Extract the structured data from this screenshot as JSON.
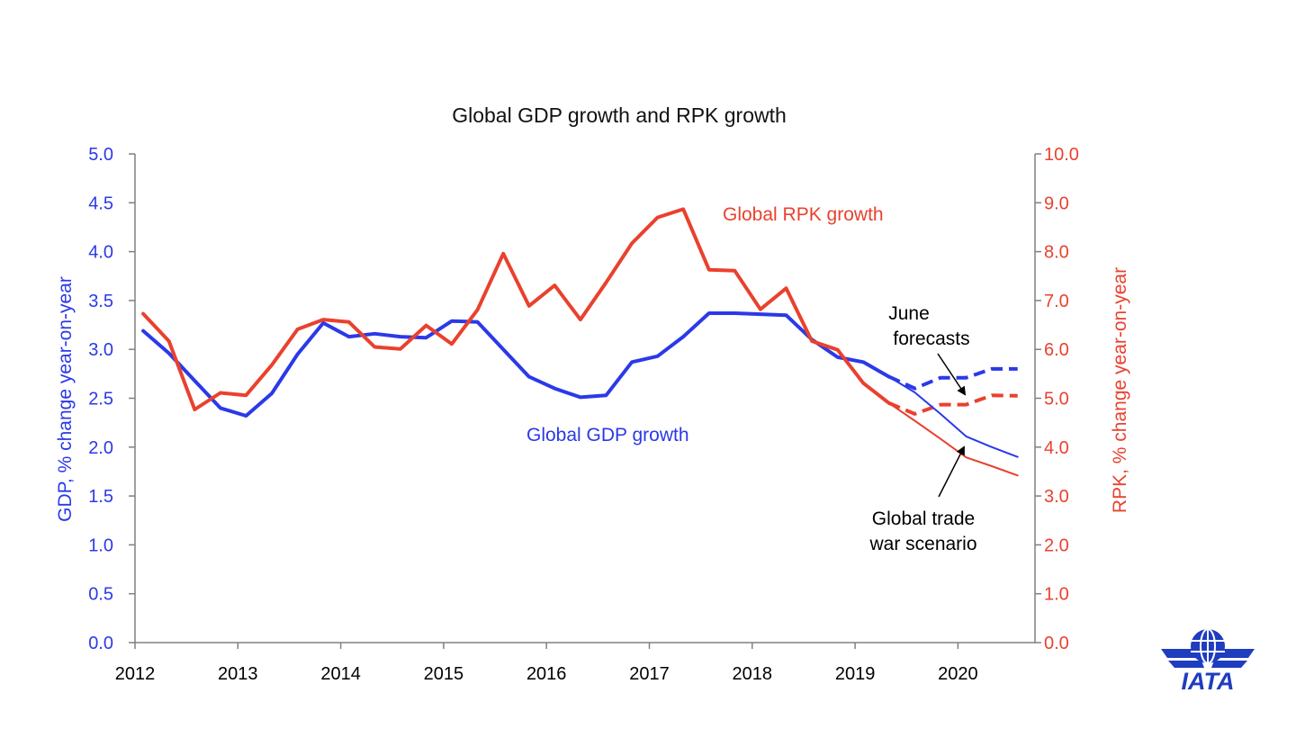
{
  "chart_data": {
    "type": "line",
    "title": "Global GDP growth and RPK growth",
    "x_ticks": [
      "2012",
      "2013",
      "2014",
      "2015",
      "2016",
      "2017",
      "2018",
      "2019",
      "2020"
    ],
    "y_left": {
      "label": "GDP, % change year-on-year",
      "range": [
        0,
        5
      ],
      "ticks": [
        "0.0",
        "0.5",
        "1.0",
        "1.5",
        "2.0",
        "2.5",
        "3.0",
        "3.5",
        "4.0",
        "4.5",
        "5.0"
      ],
      "color": "#2b39e8"
    },
    "y_right": {
      "label": "RPK, % change year-on-year",
      "range": [
        0,
        10
      ],
      "ticks": [
        "0.0",
        "1.0",
        "2.0",
        "3.0",
        "4.0",
        "5.0",
        "6.0",
        "7.0",
        "8.0",
        "9.0",
        "10.0"
      ],
      "color": "#e9412e"
    },
    "grid": false,
    "series": [
      {
        "name": "Global GDP growth",
        "axis": "left",
        "color": "#2b39e8",
        "style": "solid",
        "x": [
          2012.08,
          2012.33,
          2012.58,
          2012.83,
          2013.08,
          2013.33,
          2013.58,
          2013.83,
          2014.08,
          2014.33,
          2014.58,
          2014.83,
          2015.08,
          2015.33,
          2015.58,
          2015.83,
          2016.08,
          2016.33,
          2016.58,
          2016.83,
          2017.08,
          2017.33,
          2017.58,
          2017.83,
          2018.08,
          2018.33,
          2018.58,
          2018.83,
          2019.08,
          2019.33
        ],
        "y": [
          3.19,
          2.96,
          2.68,
          2.4,
          2.32,
          2.55,
          2.95,
          3.27,
          3.13,
          3.16,
          3.13,
          3.12,
          3.29,
          3.28,
          3.0,
          2.72,
          2.6,
          2.51,
          2.53,
          2.87,
          2.93,
          3.13,
          3.37,
          3.37,
          3.36,
          3.35,
          3.1,
          2.92,
          2.87,
          2.72
        ]
      },
      {
        "name": "Global RPK growth",
        "axis": "right",
        "color": "#e9412e",
        "style": "solid",
        "x": [
          2012.08,
          2012.33,
          2012.58,
          2012.83,
          2013.08,
          2013.33,
          2013.58,
          2013.83,
          2014.08,
          2014.33,
          2014.58,
          2014.83,
          2015.08,
          2015.33,
          2015.58,
          2015.83,
          2016.08,
          2016.33,
          2016.58,
          2016.83,
          2017.08,
          2017.33,
          2017.58,
          2017.83,
          2018.08,
          2018.33,
          2018.58,
          2018.83,
          2019.08,
          2019.33
        ],
        "y": [
          6.73,
          6.17,
          4.77,
          5.11,
          5.06,
          5.68,
          6.41,
          6.61,
          6.56,
          6.05,
          6.01,
          6.49,
          6.11,
          6.81,
          7.96,
          6.89,
          7.31,
          6.61,
          7.37,
          8.17,
          8.7,
          8.87,
          7.63,
          7.61,
          6.82,
          7.25,
          6.17,
          5.99,
          5.31,
          4.9
        ]
      },
      {
        "name": "GDP June forecasts",
        "axis": "left",
        "color": "#2b39e8",
        "style": "dashed",
        "x": [
          2019.33,
          2019.58,
          2019.83,
          2020.08,
          2020.33,
          2020.58
        ],
        "y": [
          2.72,
          2.6,
          2.71,
          2.71,
          2.8,
          2.8
        ]
      },
      {
        "name": "RPK June forecasts",
        "axis": "right",
        "color": "#e9412e",
        "style": "dashed",
        "x": [
          2019.33,
          2019.58,
          2019.83,
          2020.08,
          2020.33,
          2020.58
        ],
        "y": [
          4.9,
          4.68,
          4.87,
          4.87,
          5.06,
          5.05
        ]
      },
      {
        "name": "GDP Global trade war scenario",
        "axis": "left",
        "color": "#2b39e8",
        "style": "thin",
        "x": [
          2019.33,
          2019.58,
          2019.83,
          2020.08,
          2020.33,
          2020.58
        ],
        "y": [
          2.72,
          2.56,
          2.34,
          2.11,
          2.0,
          1.9
        ]
      },
      {
        "name": "RPK Global trade war scenario",
        "axis": "right",
        "color": "#e9412e",
        "style": "thin",
        "x": [
          2019.33,
          2019.58,
          2019.83,
          2020.08,
          2020.33,
          2020.58
        ],
        "y": [
          4.9,
          4.54,
          4.17,
          3.79,
          3.61,
          3.42
        ]
      }
    ],
    "annotations": {
      "rpk_label": "Global RPK growth",
      "gdp_label": "Global GDP growth",
      "june_line1": "June",
      "june_line2": "forecasts",
      "trade_line1": "Global trade",
      "trade_line2": "war scenario"
    }
  },
  "logo": {
    "text": "IATA",
    "color": "#1f3dbf"
  }
}
